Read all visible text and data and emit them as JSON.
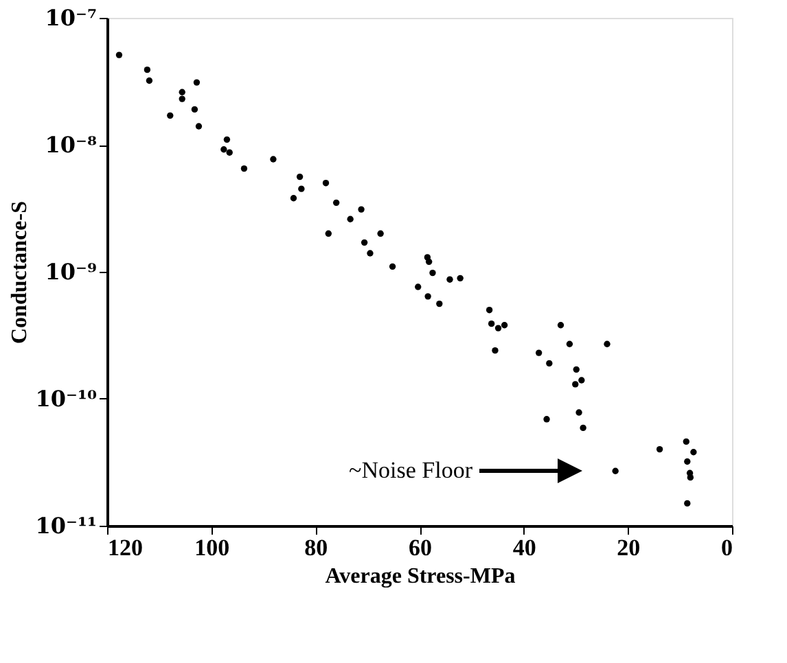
{
  "chart_data": {
    "type": "scatter",
    "xlabel": "Average Stress-MPa",
    "ylabel": "Conductance-S",
    "x": [
      117.7,
      112.3,
      111.9,
      107.9,
      105.6,
      105.6,
      103.2,
      102.8,
      102.4,
      97.0,
      97.6,
      96.5,
      93.7,
      88.1,
      83.0,
      82.7,
      84.2,
      78.0,
      76.0,
      77.5,
      73.3,
      71.2,
      70.6,
      69.5,
      67.5,
      65.2,
      58.5,
      58.2,
      57.5,
      60.3,
      58.4,
      56.2,
      54.2,
      52.2,
      46.6,
      46.2,
      44.9,
      43.7,
      45.5,
      37.1,
      35.1,
      32.9,
      31.2,
      29.9,
      30.1,
      28.9,
      24.0,
      35.6,
      29.4,
      28.6,
      22.4,
      13.9,
      8.8,
      7.4,
      8.6,
      8.1,
      8.0,
      8.6
    ],
    "series": [
      {
        "color": "#000000",
        "values": [
          5.1e-08,
          3.9e-08,
          3.2e-08,
          1.7e-08,
          2.6e-08,
          2.3e-08,
          1.9e-08,
          3.1e-08,
          1.4e-08,
          1.1e-08,
          9.2e-09,
          8.7e-09,
          6.5e-09,
          7.7e-09,
          5.6e-09,
          4.5e-09,
          3.8e-09,
          5e-09,
          3.5e-09,
          2e-09,
          2.6e-09,
          3.1e-09,
          1.7e-09,
          1.4e-09,
          2e-09,
          1.1e-09,
          1.3e-09,
          1.2e-09,
          9.8e-10,
          7.6e-10,
          6.4e-10,
          5.6e-10,
          8.7e-10,
          8.9e-10,
          5e-10,
          3.9e-10,
          3.6e-10,
          3.8e-10,
          2.4e-10,
          2.3e-10,
          1.9e-10,
          3.8e-10,
          2.7e-10,
          1.7e-10,
          1.3e-10,
          1.4e-10,
          2.7e-10,
          6.9e-11,
          7.8e-11,
          5.9e-11,
          2.7e-11,
          4e-11,
          4.6e-11,
          3.8e-11,
          3.2e-11,
          2.6e-11,
          2.4e-11,
          1.5e-11
        ]
      }
    ],
    "xlim": [
      120,
      0
    ],
    "xticks": [
      120,
      100,
      80,
      60,
      40,
      20,
      0
    ],
    "ylim": [
      1e-11,
      1e-07
    ],
    "log": "y",
    "yticks": [
      {
        "value": 1e-11,
        "label": "10⁻¹¹"
      },
      {
        "value": 1e-10,
        "label": "10⁻¹⁰"
      },
      {
        "value": 1e-09,
        "label": "10⁻⁹"
      },
      {
        "value": 1e-08,
        "label": "10⁻⁸"
      },
      {
        "value": 1e-07,
        "label": "10⁻⁷"
      }
    ],
    "marker": "circle",
    "grid": false,
    "annotations": [
      "~Noise Floor"
    ]
  }
}
